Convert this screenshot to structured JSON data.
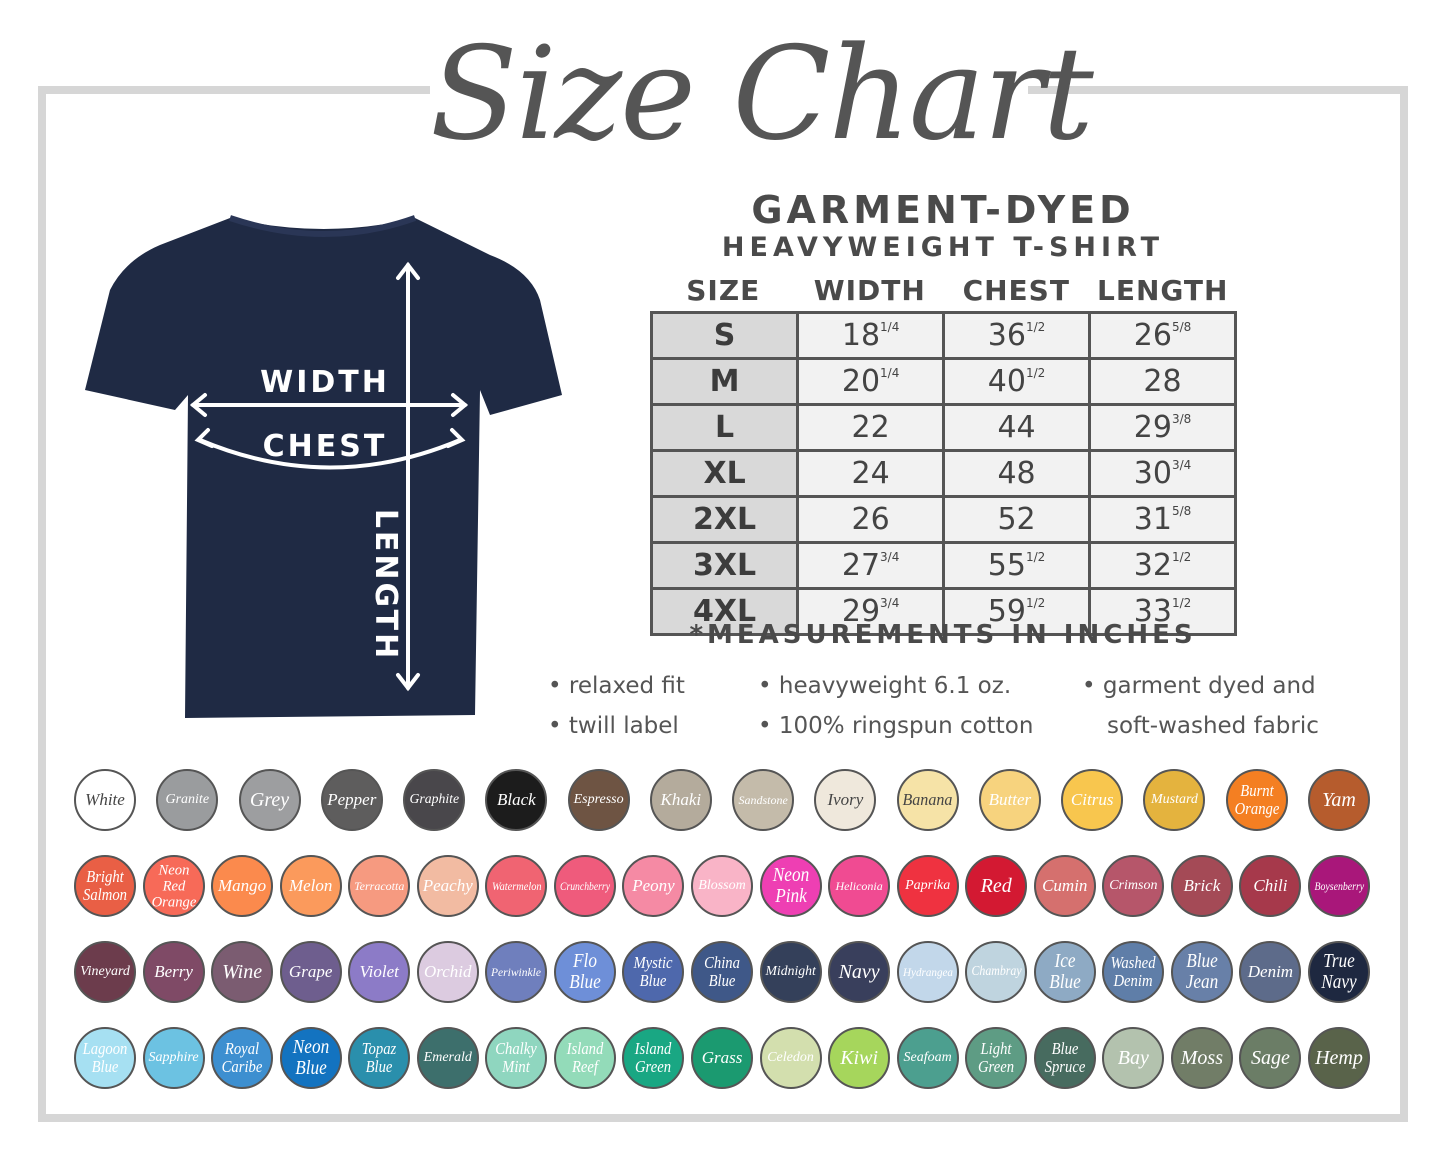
{
  "title": "Size Chart",
  "product": {
    "line1": "GARMENT-DYED",
    "line2": "HEAVYWEIGHT T-SHIRT"
  },
  "diagram_labels": {
    "width": "WIDTH",
    "chest": "CHEST",
    "length": "LENGTH"
  },
  "table": {
    "headers": [
      "SIZE",
      "WIDTH",
      "CHEST",
      "LENGTH"
    ],
    "rows": [
      {
        "size": "S",
        "width": [
          "18",
          "1/4"
        ],
        "chest": [
          "36",
          "1/2"
        ],
        "length": [
          "26",
          "5/8"
        ]
      },
      {
        "size": "M",
        "width": [
          "20",
          "1/4"
        ],
        "chest": [
          "40",
          "1/2"
        ],
        "length": [
          "28",
          ""
        ]
      },
      {
        "size": "L",
        "width": [
          "22",
          ""
        ],
        "chest": [
          "44",
          ""
        ],
        "length": [
          "29",
          "3/8"
        ]
      },
      {
        "size": "XL",
        "width": [
          "24",
          ""
        ],
        "chest": [
          "48",
          ""
        ],
        "length": [
          "30",
          "3/4"
        ]
      },
      {
        "size": "2XL",
        "width": [
          "26",
          ""
        ],
        "chest": [
          "52",
          ""
        ],
        "length": [
          "31",
          "5/8"
        ]
      },
      {
        "size": "3XL",
        "width": [
          "27",
          "3/4"
        ],
        "chest": [
          "55",
          "1/2"
        ],
        "length": [
          "32",
          "1/2"
        ]
      },
      {
        "size": "4XL",
        "width": [
          "29",
          "3/4"
        ],
        "chest": [
          "59",
          "1/2"
        ],
        "length": [
          "33",
          "1/2"
        ]
      }
    ],
    "note": "*MEASUREMENTS IN INCHES"
  },
  "features": [
    "• relaxed fit",
    "• twill label",
    "• heavyweight 6.1 oz.",
    "• 100% ringspun cotton",
    "• garment dyed and",
    "soft-washed fabric"
  ],
  "colors": {
    "shirt": "#1f2a44",
    "title": "#555555",
    "frame": "#d6d6d6"
  },
  "swatch_rows": [
    [
      [
        "White",
        "#ffffff",
        "#444"
      ],
      [
        "Granite",
        "#9a9c9e"
      ],
      [
        "Grey",
        "#9d9ea0"
      ],
      [
        "Pepper",
        "#5e5d5d"
      ],
      [
        "Graphite",
        "#49474b"
      ],
      [
        "Black",
        "#1c1c1c"
      ],
      [
        "Espresso",
        "#6e5443"
      ],
      [
        "Khaki",
        "#b4ab9c"
      ],
      [
        "Sandstone",
        "#c4bbaa"
      ],
      [
        "Ivory",
        "#efe8dc",
        "#444"
      ],
      [
        "Banana",
        "#f6e3a7",
        "#444"
      ],
      [
        "Butter",
        "#f7d37e"
      ],
      [
        "Citrus",
        "#f8c64e"
      ],
      [
        "Mustard",
        "#e4b33e"
      ],
      [
        "Burnt Orange",
        "#f47f22"
      ],
      [
        "Yam",
        "#b65c2d"
      ]
    ],
    [
      [
        "Bright Salmon",
        "#e95f45"
      ],
      [
        "Neon Red Orange",
        "#f76a58"
      ],
      [
        "Mango",
        "#fb8a4d"
      ],
      [
        "Melon",
        "#fb9a5c"
      ],
      [
        "Terracotta",
        "#f69a80"
      ],
      [
        "Peachy",
        "#f2bba2"
      ],
      [
        "Watermelon",
        "#f06472"
      ],
      [
        "Crunchberry",
        "#ef5b7c"
      ],
      [
        "Peony",
        "#f58aa4"
      ],
      [
        "Blossom",
        "#f9b4c7"
      ],
      [
        "Neon Pink",
        "#ee3fb3"
      ],
      [
        "Heliconia",
        "#f04b92"
      ],
      [
        "Paprika",
        "#ef3240"
      ],
      [
        "Red",
        "#d31932"
      ],
      [
        "Cumin",
        "#d5706e"
      ],
      [
        "Crimson",
        "#b6566a"
      ],
      [
        "Brick",
        "#a44a56"
      ],
      [
        "Chili",
        "#a6394b"
      ],
      [
        "Boysenberry",
        "#a9177a"
      ]
    ],
    [
      [
        "Vineyard",
        "#6c3c4c"
      ],
      [
        "Berry",
        "#7f4a66"
      ],
      [
        "Wine",
        "#7b5c71"
      ],
      [
        "Grape",
        "#6e5e8e"
      ],
      [
        "Violet",
        "#8c7bc7"
      ],
      [
        "Orchid",
        "#dccbe0"
      ],
      [
        "Periwinkle",
        "#6f7fbd"
      ],
      [
        "Flo Blue",
        "#6e8fd8"
      ],
      [
        "Mystic Blue",
        "#4e68ac"
      ],
      [
        "China Blue",
        "#3f5888"
      ],
      [
        "Midnight",
        "#34405a"
      ],
      [
        "Navy",
        "#393f5c"
      ],
      [
        "Hydrangea",
        "#c2d7ea"
      ],
      [
        "Chambray",
        "#bfd4df"
      ],
      [
        "Ice Blue",
        "#8eaac4"
      ],
      [
        "Washed Denim",
        "#5f7ea8"
      ],
      [
        "Blue Jean",
        "#6880a8"
      ],
      [
        "Denim",
        "#5d6b8a"
      ],
      [
        "True Navy",
        "#1e2840"
      ]
    ],
    [
      [
        "Lagoon Blue",
        "#a6e0f2"
      ],
      [
        "Sapphire",
        "#6cc2e2"
      ],
      [
        "Royal Caribe",
        "#3d8fd0"
      ],
      [
        "Neon Blue",
        "#1373c0"
      ],
      [
        "Topaz Blue",
        "#2a8fac"
      ],
      [
        "Emerald",
        "#3d6f6c"
      ],
      [
        "Chalky Mint",
        "#8fd6bf"
      ],
      [
        "Island Reef",
        "#93dbb9"
      ],
      [
        "Island Green",
        "#19a783"
      ],
      [
        "Grass",
        "#1b9a70"
      ],
      [
        "Celedon",
        "#d3dfae"
      ],
      [
        "Kiwi",
        "#a6d65c"
      ],
      [
        "Seafoam",
        "#4c9f8f"
      ],
      [
        "Light Green",
        "#5e9c84"
      ],
      [
        "Blue Spruce",
        "#476b5f"
      ],
      [
        "Bay",
        "#b3c2ae"
      ],
      [
        "Moss",
        "#717d67"
      ],
      [
        "Sage",
        "#6b7d66"
      ],
      [
        "Hemp",
        "#59634a"
      ]
    ]
  ]
}
